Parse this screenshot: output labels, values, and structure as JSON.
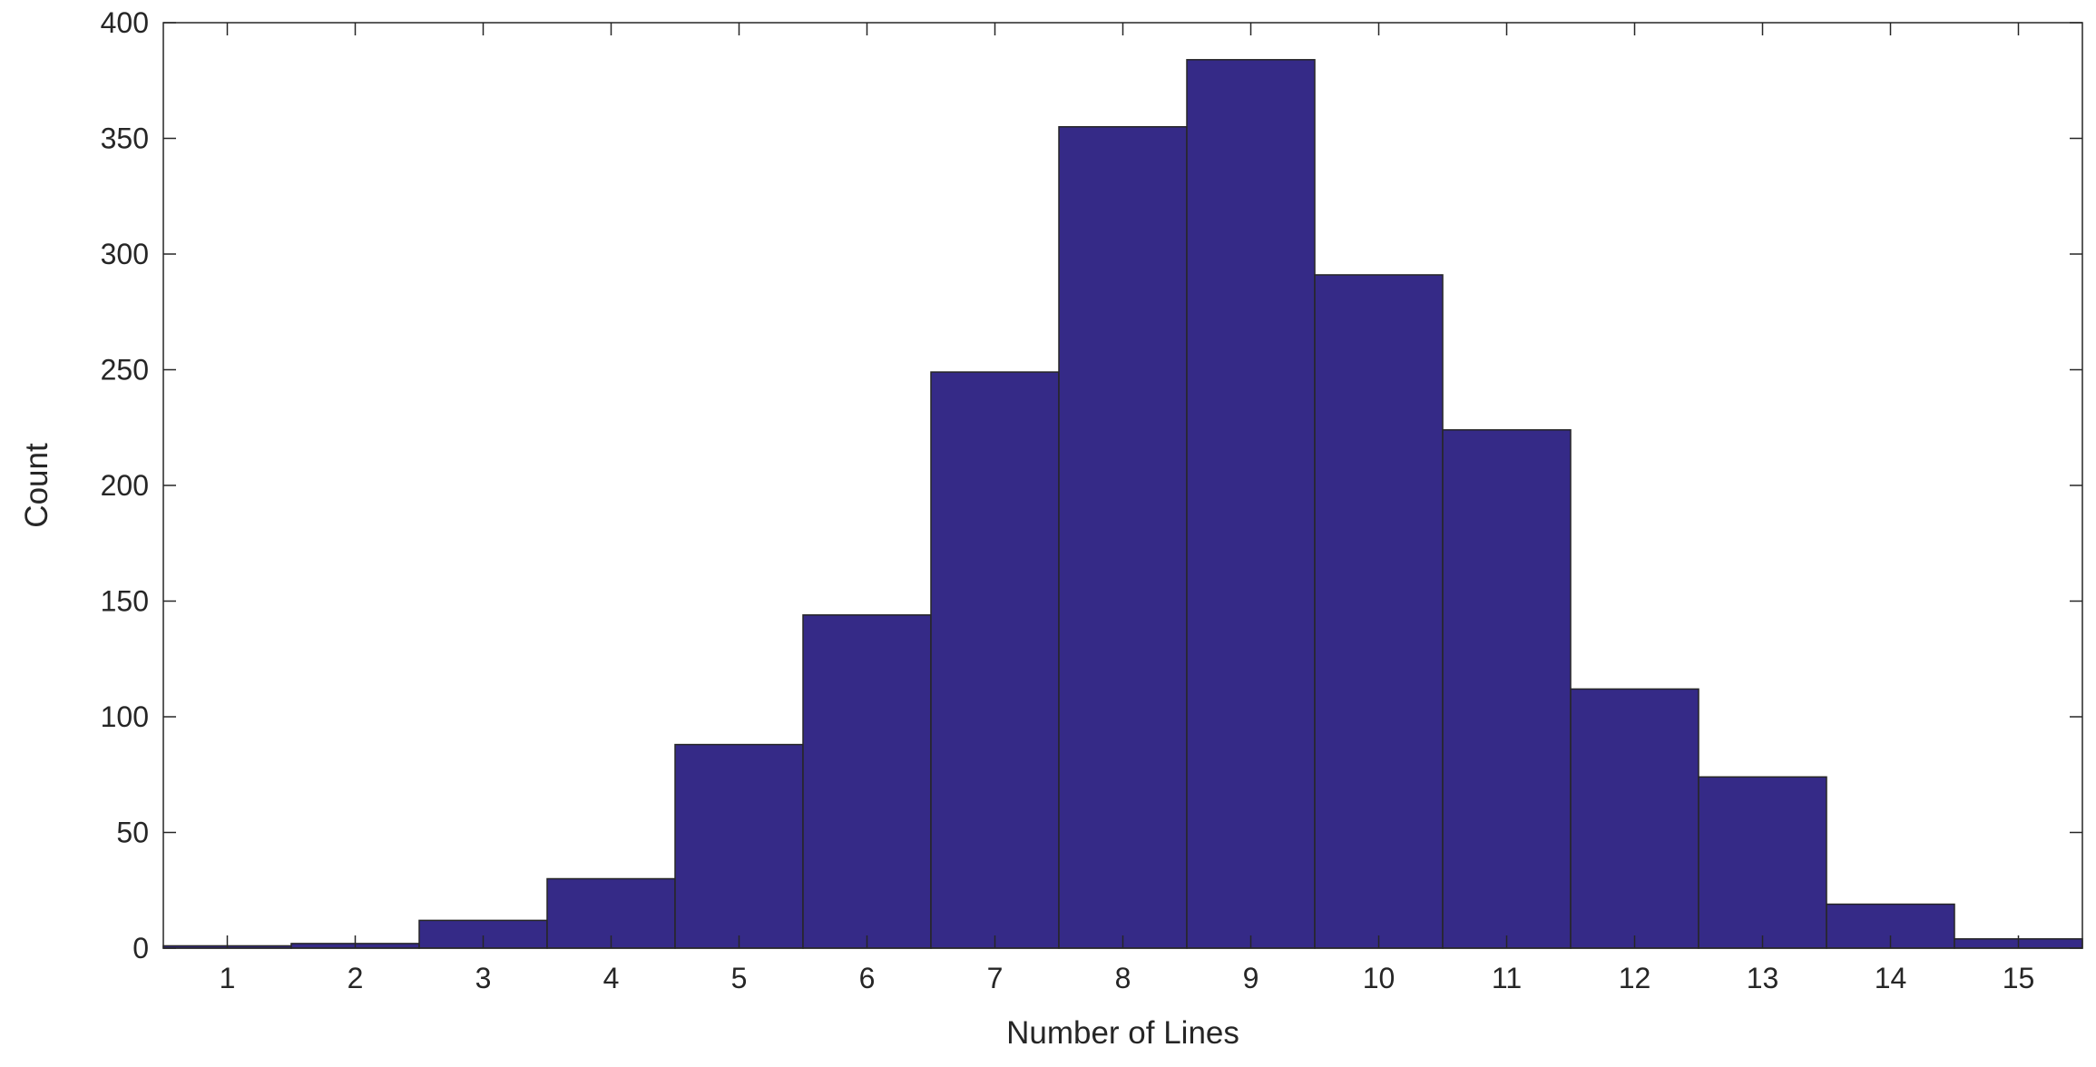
{
  "chart_data": {
    "type": "bar",
    "title": "",
    "xlabel": "Number of Lines",
    "ylabel": "Count",
    "categories": [
      1,
      2,
      3,
      4,
      5,
      6,
      7,
      8,
      9,
      10,
      11,
      12,
      13,
      14,
      15
    ],
    "values": [
      1,
      2,
      12,
      30,
      88,
      144,
      249,
      355,
      384,
      291,
      224,
      112,
      74,
      19,
      4
    ],
    "xlim": [
      0.5,
      15.5
    ],
    "ylim": [
      0,
      400
    ],
    "yticks": [
      0,
      50,
      100,
      150,
      200,
      250,
      300,
      350,
      400
    ],
    "xticks": [
      1,
      2,
      3,
      4,
      5,
      6,
      7,
      8,
      9,
      10,
      11,
      12,
      13,
      14,
      15
    ],
    "grid": false,
    "legend": "none",
    "colors": {
      "bar_fill": "#352a87",
      "bar_edge": "#262626",
      "axis": "#262626"
    }
  }
}
